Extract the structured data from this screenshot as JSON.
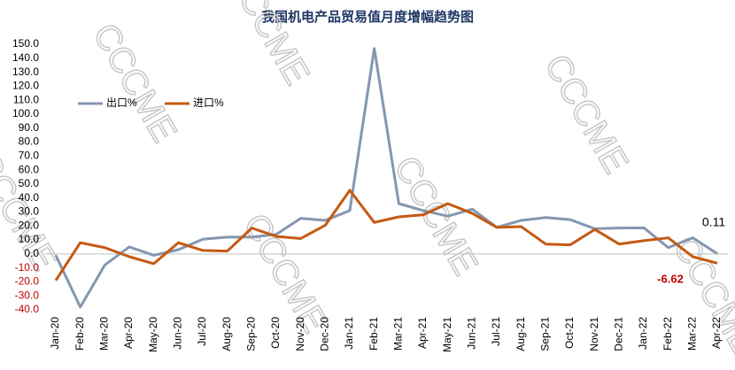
{
  "chart_data": {
    "type": "line",
    "title": "我国机电产品贸易值月度增幅趋势图",
    "watermark": "CCCME",
    "categories": [
      "Jan-20",
      "Feb-20",
      "Mar-20",
      "Apr-20",
      "May-20",
      "Jun-20",
      "Jul-20",
      "Aug-20",
      "Sep-20",
      "Oct-20",
      "Nov-20",
      "Dec-20",
      "Jan-21",
      "Feb-21",
      "Mar-21",
      "Apr-21",
      "May-21",
      "Jun-21",
      "Jul-21",
      "Aug-21",
      "Sep-21",
      "Oct-21",
      "Nov-21",
      "Dec-21",
      "Jan-22",
      "Feb-22",
      "Mar-22",
      "Apr-22"
    ],
    "series": [
      {
        "name": "出口%",
        "color": "#8497b0",
        "values": [
          -1,
          -38,
          -8,
          5,
          -1,
          3,
          10.5,
          12,
          12,
          14,
          25.5,
          24,
          31,
          147,
          36,
          31,
          27,
          32,
          19,
          24,
          26,
          24.5,
          18,
          18.5,
          18.7,
          4.5,
          11.5,
          0.11
        ]
      },
      {
        "name": "进口%",
        "color": "#c55a11",
        "values": [
          -19,
          8,
          4.5,
          -2,
          -7,
          8,
          2.5,
          2,
          18.5,
          12.5,
          11,
          20.5,
          45.5,
          22.5,
          26.5,
          28,
          36,
          29,
          19,
          19.5,
          7,
          6.5,
          17.5,
          7,
          9.5,
          11.5,
          -2,
          -6.62
        ]
      }
    ],
    "ylim": [
      -40,
      150
    ],
    "yticks": [
      {
        "value": -40,
        "label": "-40.0"
      },
      {
        "value": -30,
        "label": "-30.0"
      },
      {
        "value": -20,
        "label": "-20.0"
      },
      {
        "value": -10,
        "label": "-10.0"
      },
      {
        "value": 0,
        "label": "0.0"
      },
      {
        "value": 10,
        "label": "10.0"
      },
      {
        "value": 20,
        "label": "20.0"
      },
      {
        "value": 30,
        "label": "30.0"
      },
      {
        "value": 40,
        "label": "40.0"
      },
      {
        "value": 50,
        "label": "50.0"
      },
      {
        "value": 60,
        "label": "60.0"
      },
      {
        "value": 70,
        "label": "70.0"
      },
      {
        "value": 80,
        "label": "80.0"
      },
      {
        "value": 90,
        "label": "90.0"
      },
      {
        "value": 100,
        "label": "100.0"
      },
      {
        "value": 110,
        "label": "110.0"
      },
      {
        "value": 120,
        "label": "120.0"
      },
      {
        "value": 130,
        "label": "130.0"
      },
      {
        "value": 140,
        "label": "140.0"
      },
      {
        "value": 150,
        "label": "150.0"
      }
    ],
    "negative_label_color": "#c00000",
    "legend": "upper left",
    "grid": false
  }
}
